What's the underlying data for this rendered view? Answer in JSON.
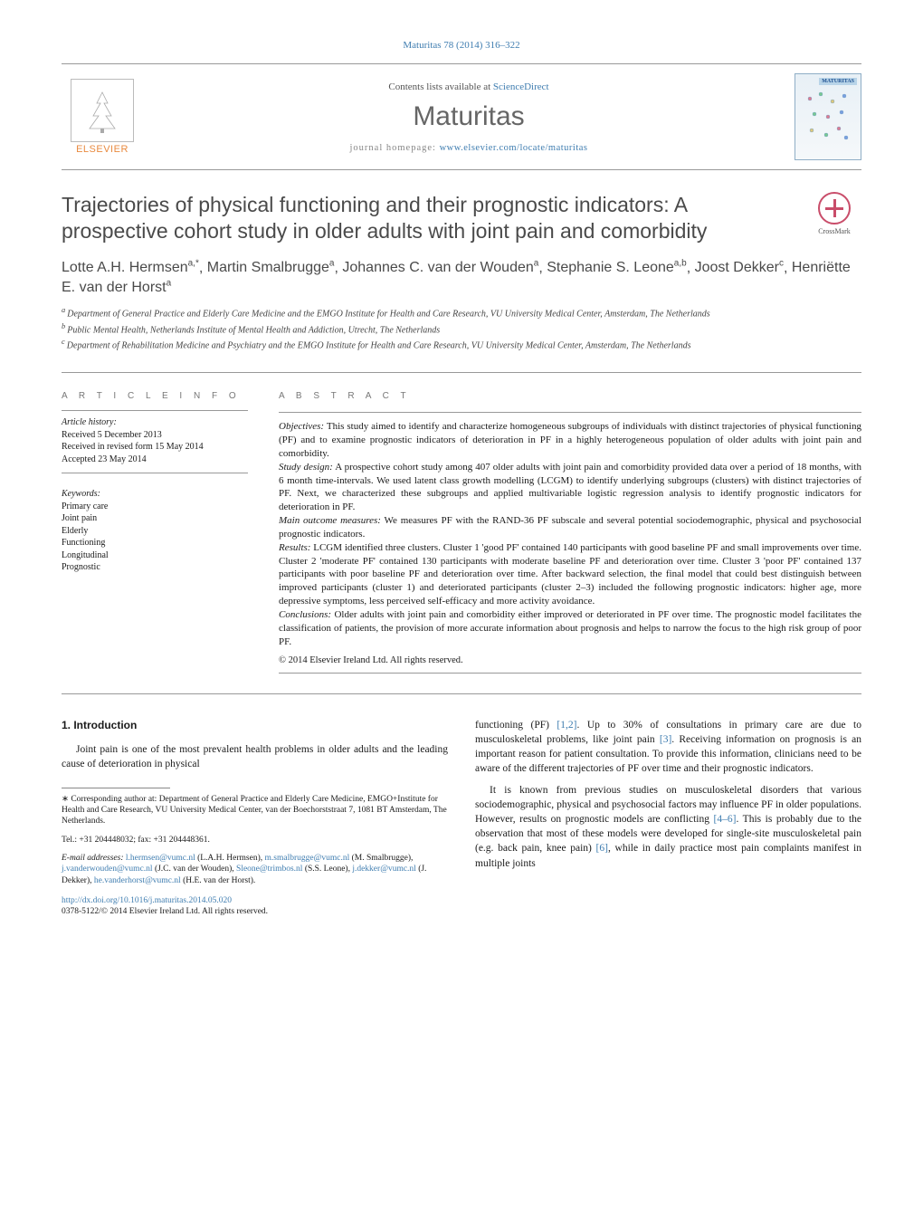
{
  "journal_ref": "Maturitas 78 (2014) 316–322",
  "header": {
    "contents_prefix": "Contents lists available at ",
    "contents_link": "ScienceDirect",
    "journal_title": "Maturitas",
    "homepage_prefix": "journal homepage: ",
    "homepage_link": "www.elsevier.com/locate/maturitas",
    "publisher_label": "ELSEVIER",
    "cover_label": "MATURITAS",
    "crossmark_label": "CrossMark"
  },
  "article_title": "Trajectories of physical functioning and their prognostic indicators: A prospective cohort study in older adults with joint pain and comorbidity",
  "authors_html_parts": [
    {
      "name": "Lotte A.H. Hermsen",
      "sup": "a,*"
    },
    {
      "name": "Martin Smalbrugge",
      "sup": "a"
    },
    {
      "name": "Johannes C. van der Wouden",
      "sup": "a"
    },
    {
      "name": "Stephanie S. Leone",
      "sup": "a,b"
    },
    {
      "name": "Joost Dekker",
      "sup": "c"
    },
    {
      "name": "Henriëtte E. van der Horst",
      "sup": "a"
    }
  ],
  "affiliations": [
    {
      "sup": "a",
      "text": "Department of General Practice and Elderly Care Medicine and the EMGO Institute for Health and Care Research, VU University Medical Center, Amsterdam, The Netherlands"
    },
    {
      "sup": "b",
      "text": "Public Mental Health, Netherlands Institute of Mental Health and Addiction, Utrecht, The Netherlands"
    },
    {
      "sup": "c",
      "text": "Department of Rehabilitation Medicine and Psychiatry and the EMGO Institute for Health and Care Research, VU University Medical Center, Amsterdam, The Netherlands"
    }
  ],
  "article_info": {
    "heading": "A R T I C L E   I N F O",
    "history_label": "Article history:",
    "received": "Received 5 December 2013",
    "revised": "Received in revised form 15 May 2014",
    "accepted": "Accepted 23 May 2014",
    "keywords_label": "Keywords:",
    "keywords": [
      "Primary care",
      "Joint pain",
      "Elderly",
      "Functioning",
      "Longitudinal",
      "Prognostic"
    ]
  },
  "abstract": {
    "heading": "A B S T R A C T",
    "objectives_label": "Objectives:",
    "objectives": " This study aimed to identify and characterize homogeneous subgroups of individuals with distinct trajectories of physical functioning (PF) and to examine prognostic indicators of deterioration in PF in a highly heterogeneous population of older adults with joint pain and comorbidity.",
    "design_label": "Study design:",
    "design": " A prospective cohort study among 407 older adults with joint pain and comorbidity provided data over a period of 18 months, with 6 month time-intervals. We used latent class growth modelling (LCGM) to identify underlying subgroups (clusters) with distinct trajectories of PF. Next, we characterized these subgroups and applied multivariable logistic regression analysis to identify prognostic indicators for deterioration in PF.",
    "outcome_label": "Main outcome measures:",
    "outcome": " We measures PF with the RAND-36 PF subscale and several potential sociodemographic, physical and psychosocial prognostic indicators.",
    "results_label": "Results:",
    "results": " LCGM identified three clusters. Cluster 1 'good PF' contained 140 participants with good baseline PF and small improvements over time. Cluster 2 'moderate PF' contained 130 participants with moderate baseline PF and deterioration over time. Cluster 3 'poor PF' contained 137 participants with poor baseline PF and deterioration over time. After backward selection, the final model that could best distinguish between improved participants (cluster 1) and deteriorated participants (cluster 2–3) included the following prognostic indicators: higher age, more depressive symptoms, less perceived self-efficacy and more activity avoidance.",
    "conclusions_label": "Conclusions:",
    "conclusions": " Older adults with joint pain and comorbidity either improved or deteriorated in PF over time. The prognostic model facilitates the classification of patients, the provision of more accurate information about prognosis and helps to narrow the focus to the high risk group of poor PF.",
    "copyright": "© 2014 Elsevier Ireland Ltd. All rights reserved."
  },
  "body": {
    "intro_heading": "1.  Introduction",
    "left_p1": "Joint pain is one of the most prevalent health problems in older adults and the leading cause of deterioration in physical",
    "corr_label": "∗ Corresponding author at: Department of General Practice and Elderly Care Medicine, EMGO+Institute for Health and Care Research, VU University Medical Center, van der Boechorststraat 7, 1081 BT Amsterdam, The Netherlands.",
    "tel": "Tel.: +31 204448032; fax: +31 204448361.",
    "email_label": "E-mail addresses: ",
    "emails": [
      {
        "addr": "l.hermsen@vumc.nl",
        "who": "(L.A.H. Hermsen)"
      },
      {
        "addr": "m.smalbrugge@vumc.nl",
        "who": "(M. Smalbrugge)"
      },
      {
        "addr": "j.vanderwouden@vumc.nl",
        "who": "(J.C. van der Wouden)"
      },
      {
        "addr": "Sleone@trimbos.nl",
        "who": "(S.S. Leone)"
      },
      {
        "addr": "j.dekker@vumc.nl",
        "who": "(J. Dekker)"
      },
      {
        "addr": "he.vanderhorst@vumc.nl",
        "who": "(H.E. van der Horst)"
      }
    ],
    "doi": "http://dx.doi.org/10.1016/j.maturitas.2014.05.020",
    "issn": "0378-5122/© 2014 Elsevier Ireland Ltd. All rights reserved.",
    "right_p1_pre": "functioning (PF) ",
    "right_p1_ref1": "[1,2]",
    "right_p1_mid": ". Up to 30% of consultations in primary care are due to musculoskeletal problems, like joint pain ",
    "right_p1_ref2": "[3]",
    "right_p1_post": ". Receiving information on prognosis is an important reason for patient consultation. To provide this information, clinicians need to be aware of the different trajectories of PF over time and their prognostic indicators.",
    "right_p2_pre": "It is known from previous studies on musculoskeletal disorders that various sociodemographic, physical and psychosocial factors may influence PF in older populations. However, results on prognostic models are conflicting ",
    "right_p2_ref1": "[4–6]",
    "right_p2_mid": ". This is probably due to the observation that most of these models were developed for single-site musculoskeletal pain (e.g. back pain, knee pain) ",
    "right_p2_ref2": "[6]",
    "right_p2_post": ", while in daily practice most pain complaints manifest in multiple joints"
  },
  "colors": {
    "link": "#3f7db0",
    "elsevier_orange": "#e98a3f",
    "crossmark_red": "#c94d6a",
    "heading_gray": "#4a4a4a",
    "rule": "#999999"
  },
  "typography": {
    "title_fontsize_pt": 17,
    "authors_fontsize_pt": 12,
    "body_fontsize_pt": 9,
    "abstract_fontsize_pt": 8,
    "footnote_fontsize_pt": 7
  }
}
